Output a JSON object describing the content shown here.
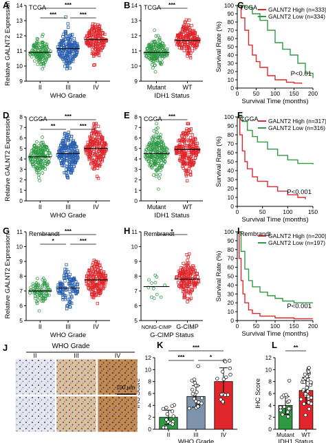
{
  "colors": {
    "green": "#2e9a44",
    "blue": "#2a5fb0",
    "red": "#e0262b",
    "slate": "#7f93ad",
    "black": "#000000"
  },
  "panels": [
    {
      "id": "A",
      "letter": "A",
      "kind": "scatter",
      "dataset": "TCGA",
      "ylabel": "Relative GALNT2 Expression",
      "xtitle": "WHO Grade",
      "ymin": 9,
      "ymax": 14,
      "yticks": [
        "9",
        "10",
        "11",
        "12",
        "13",
        "14"
      ],
      "groups": [
        {
          "label": "II",
          "mean": 10.9,
          "sd": 0.45,
          "n": 140,
          "color": "green"
        },
        {
          "label": "III",
          "mean": 11.15,
          "sd": 0.55,
          "n": 180,
          "color": "blue"
        },
        {
          "label": "IV",
          "mean": 11.75,
          "sd": 0.5,
          "n": 160,
          "color": "red"
        }
      ],
      "sig": [
        {
          "a": 0,
          "b": 2,
          "level": "top",
          "text": "***"
        },
        {
          "a": 0,
          "b": 1,
          "level": "low",
          "text": "***"
        },
        {
          "a": 1,
          "b": 2,
          "level": "low",
          "text": "***"
        }
      ]
    },
    {
      "id": "B",
      "letter": "B",
      "kind": "scatter",
      "dataset": "TCGA",
      "ylabel": "",
      "xtitle": "IDH1 Status",
      "ymin": 9,
      "ymax": 14,
      "yticks": [
        "9",
        "10",
        "11",
        "12",
        "13",
        "14"
      ],
      "groups": [
        {
          "label": "Mutant",
          "mean": 10.9,
          "sd": 0.45,
          "n": 180,
          "color": "green"
        },
        {
          "label": "WT",
          "mean": 11.7,
          "sd": 0.5,
          "n": 180,
          "color": "red"
        }
      ],
      "sig": [
        {
          "a": 0,
          "b": 1,
          "level": "top",
          "text": "***"
        }
      ]
    },
    {
      "id": "C",
      "letter": "C",
      "kind": "km",
      "dataset": "TCGA",
      "ylabel": "Survival Rate (%)",
      "xlabel": "Survival Time (months)",
      "xmax": 200,
      "xticks": [
        "0",
        "50",
        "100",
        "150",
        "200"
      ],
      "yticks": [
        "0",
        "10",
        "20",
        "30",
        "40",
        "50",
        "60",
        "70",
        "80",
        "90",
        "100"
      ],
      "pval": "P<0.01",
      "series": [
        {
          "name": "GALNT2 High (n=333)",
          "color": "red",
          "pts": [
            [
              0,
              100
            ],
            [
              10,
              85
            ],
            [
              20,
              70
            ],
            [
              30,
              52
            ],
            [
              40,
              40
            ],
            [
              50,
              32
            ],
            [
              60,
              25
            ],
            [
              80,
              15
            ],
            [
              100,
              10
            ],
            [
              130,
              7
            ],
            [
              150,
              6
            ],
            [
              170,
              5
            ]
          ]
        },
        {
          "name": "GALNT2 Low (n=334)",
          "color": "green",
          "pts": [
            [
              0,
              100
            ],
            [
              20,
              98
            ],
            [
              40,
              90
            ],
            [
              60,
              82
            ],
            [
              80,
              70
            ],
            [
              100,
              55
            ],
            [
              120,
              47
            ],
            [
              140,
              40
            ],
            [
              160,
              30
            ],
            [
              180,
              18
            ],
            [
              200,
              12
            ]
          ]
        }
      ]
    },
    {
      "id": "D",
      "letter": "D",
      "kind": "scatter",
      "dataset": "CGGA",
      "ylabel": "Relative GALNT2 Expression",
      "xtitle": "WHO Grade",
      "ymin": 0,
      "ymax": 8,
      "yticks": [
        "0",
        "1",
        "2",
        "3",
        "4",
        "5",
        "6",
        "7",
        "8"
      ],
      "groups": [
        {
          "label": "II",
          "mean": 4.2,
          "sd": 0.8,
          "n": 170,
          "color": "green"
        },
        {
          "label": "III",
          "mean": 4.5,
          "sd": 0.95,
          "n": 220,
          "color": "blue"
        },
        {
          "label": "IV",
          "mean": 5.0,
          "sd": 0.95,
          "n": 200,
          "color": "red"
        }
      ],
      "sig": [
        {
          "a": 0,
          "b": 2,
          "level": "top",
          "text": "***"
        },
        {
          "a": 0,
          "b": 1,
          "level": "low",
          "text": "**"
        },
        {
          "a": 1,
          "b": 2,
          "level": "low",
          "text": "***"
        }
      ]
    },
    {
      "id": "E",
      "letter": "E",
      "kind": "scatter",
      "dataset": "CGGA",
      "ylabel": "",
      "xtitle": "IDH1 Status",
      "ymin": 0,
      "ymax": 8,
      "yticks": [
        "0",
        "1",
        "2",
        "3",
        "4",
        "5",
        "6",
        "7",
        "8"
      ],
      "groups": [
        {
          "label": "Mutant",
          "mean": 4.5,
          "sd": 0.9,
          "n": 220,
          "color": "green"
        },
        {
          "label": "WT",
          "mean": 4.9,
          "sd": 0.95,
          "n": 220,
          "color": "red"
        }
      ],
      "sig": [
        {
          "a": 0,
          "b": 1,
          "level": "top",
          "text": "***"
        }
      ]
    },
    {
      "id": "F",
      "letter": "F",
      "kind": "km",
      "dataset": "CGGA",
      "ylabel": "Survival Rate (%)",
      "xlabel": "Survival Time (months)",
      "xmax": 150,
      "xticks": [
        "0",
        "50",
        "100",
        "150"
      ],
      "yticks": [
        "0",
        "10",
        "20",
        "30",
        "40",
        "50",
        "60",
        "70",
        "80",
        "90",
        "100"
      ],
      "pval": "P<0.001",
      "series": [
        {
          "name": "GALNT2 High (n=317)",
          "color": "red",
          "pts": [
            [
              0,
              100
            ],
            [
              5,
              80
            ],
            [
              10,
              62
            ],
            [
              15,
              50
            ],
            [
              20,
              42
            ],
            [
              30,
              33
            ],
            [
              40,
              28
            ],
            [
              60,
              22
            ],
            [
              80,
              17
            ],
            [
              100,
              13
            ],
            [
              120,
              10
            ],
            [
              135,
              8
            ]
          ]
        },
        {
          "name": "GALNT2 Low (n=316)",
          "color": "green",
          "pts": [
            [
              0,
              100
            ],
            [
              10,
              95
            ],
            [
              20,
              85
            ],
            [
              30,
              78
            ],
            [
              40,
              72
            ],
            [
              60,
              64
            ],
            [
              80,
              57
            ],
            [
              100,
              52
            ],
            [
              120,
              48
            ],
            [
              150,
              47
            ]
          ]
        }
      ]
    },
    {
      "id": "G",
      "letter": "G",
      "kind": "scatter",
      "dataset": "Rembrandt",
      "ylabel": "Relative GALNT2 Expression",
      "xtitle": "WHO Grade",
      "ymin": 5,
      "ymax": 11,
      "yticks": [
        "5",
        "6",
        "7",
        "8",
        "9",
        "10",
        "11"
      ],
      "groups": [
        {
          "label": "II",
          "mean": 7.0,
          "sd": 0.45,
          "n": 90,
          "color": "green"
        },
        {
          "label": "III",
          "mean": 7.2,
          "sd": 0.55,
          "n": 120,
          "color": "blue"
        },
        {
          "label": "IV",
          "mean": 7.75,
          "sd": 0.6,
          "n": 170,
          "color": "red"
        }
      ],
      "sig": [
        {
          "a": 0,
          "b": 2,
          "level": "top",
          "text": "***"
        },
        {
          "a": 0,
          "b": 1,
          "level": "low",
          "text": "*"
        },
        {
          "a": 1,
          "b": 2,
          "level": "low",
          "text": "***"
        }
      ]
    },
    {
      "id": "H",
      "letter": "H",
      "kind": "scatter",
      "dataset": "Rembrandt",
      "ylabel": "",
      "xtitle": "G-CIMP Status",
      "ymin": 5,
      "ymax": 11,
      "yticks": [
        "5",
        "6",
        "7",
        "8",
        "9",
        "10",
        "11"
      ],
      "groups": [
        {
          "label": "NONG-CIMP",
          "mean": 7.3,
          "sd": 0.45,
          "n": 12,
          "color": "green"
        },
        {
          "label": "G-CIMP",
          "mean": 7.8,
          "sd": 0.6,
          "n": 170,
          "color": "red"
        }
      ],
      "sig": [
        {
          "a": 0,
          "b": 1,
          "level": "top",
          "text": "*"
        }
      ]
    },
    {
      "id": "I",
      "letter": "I",
      "kind": "km",
      "dataset": "Rembrandt",
      "ylabel": "Survival Rate (%)",
      "xlabel": "Survival Time (months)",
      "xmax": 200,
      "xticks": [
        "0",
        "50",
        "100",
        "150",
        "200"
      ],
      "yticks": [
        "0",
        "10",
        "20",
        "30",
        "40",
        "50",
        "60",
        "70",
        "80",
        "90",
        "100"
      ],
      "pval": "P<0.001",
      "series": [
        {
          "name": "GALNT2 High (n=200)",
          "color": "red",
          "pts": [
            [
              0,
              100
            ],
            [
              5,
              70
            ],
            [
              10,
              45
            ],
            [
              15,
              30
            ],
            [
              20,
              20
            ],
            [
              30,
              12
            ],
            [
              40,
              8
            ],
            [
              60,
              5
            ],
            [
              100,
              3
            ],
            [
              150,
              2
            ],
            [
              200,
              2
            ]
          ]
        },
        {
          "name": "GALNT2 Low (n=197)",
          "color": "green",
          "pts": [
            [
              0,
              100
            ],
            [
              10,
              78
            ],
            [
              20,
              58
            ],
            [
              30,
              45
            ],
            [
              40,
              38
            ],
            [
              60,
              32
            ],
            [
              80,
              28
            ],
            [
              100,
              25
            ],
            [
              120,
              22
            ],
            [
              150,
              20
            ],
            [
              200,
              20
            ]
          ]
        }
      ]
    },
    {
      "id": "K",
      "letter": "K",
      "kind": "bar",
      "ylabel": "IHC Score",
      "xtitle": "WHO Grade",
      "ymin": 0,
      "ymax": 12,
      "yticks": [
        "0",
        "2",
        "4",
        "6",
        "8",
        "10",
        "12"
      ],
      "groups": [
        {
          "label": "II",
          "mean": 2,
          "sd": 1.2,
          "n": 14,
          "color": "green"
        },
        {
          "label": "III",
          "mean": 5.5,
          "sd": 1.8,
          "n": 20,
          "color": "slate"
        },
        {
          "label": "IV",
          "mean": 8,
          "sd": 2.3,
          "n": 16,
          "color": "red"
        }
      ],
      "sig": [
        {
          "a": 0,
          "b": 2,
          "level": "top",
          "text": "***"
        },
        {
          "a": 0,
          "b": 1,
          "level": "low",
          "text": "***"
        },
        {
          "a": 1,
          "b": 2,
          "level": "low",
          "text": "*"
        }
      ]
    },
    {
      "id": "L",
      "letter": "L",
      "kind": "bar",
      "ylabel": "IHC Score",
      "xtitle": "IDH1 Status",
      "ymin": 0,
      "ymax": 12,
      "yticks": [
        "0",
        "2",
        "4",
        "6",
        "8",
        "10",
        "12"
      ],
      "groups": [
        {
          "label": "Mutant",
          "mean": 4,
          "sd": 1.5,
          "n": 16,
          "color": "green"
        },
        {
          "label": "WT",
          "mean": 6.5,
          "sd": 2.2,
          "n": 34,
          "color": "red"
        }
      ],
      "sig": [
        {
          "a": 0,
          "b": 1,
          "level": "top",
          "text": "**"
        }
      ]
    }
  ],
  "histology": {
    "letter": "J",
    "title": "WHO Grade",
    "columns": [
      "II",
      "III",
      "IV"
    ],
    "scale": "100 μm"
  }
}
